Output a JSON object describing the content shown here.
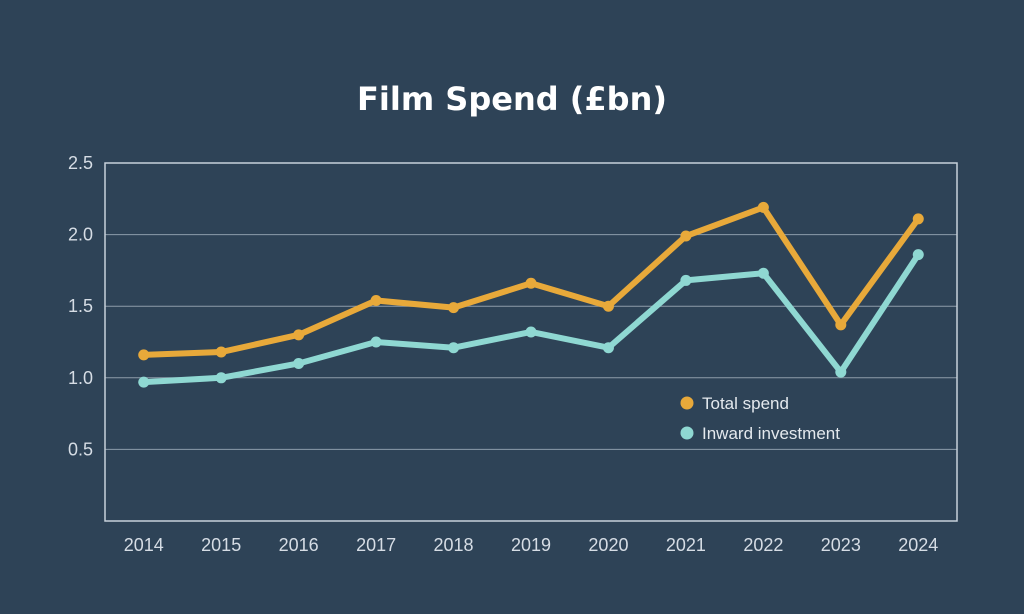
{
  "colors": {
    "background": "#2e4357",
    "axis": "#c7d1db",
    "grid": "#8d9caa",
    "text": "#d6dde5"
  },
  "chart_data": {
    "type": "line",
    "title": "Film Spend (£bn)",
    "xlabel": "",
    "ylabel": "",
    "x": [
      "2014",
      "2015",
      "2016",
      "2017",
      "2018",
      "2019",
      "2020",
      "2021",
      "2022",
      "2023",
      "2024"
    ],
    "ylim": [
      0,
      2.5
    ],
    "yticks": [
      "0.5",
      "1.0",
      "1.5",
      "2.0",
      "2.5"
    ],
    "grid": true,
    "legend_position": "lower-right",
    "series": [
      {
        "name": "Total spend",
        "color": "#e8a93a",
        "values": [
          1.16,
          1.18,
          1.3,
          1.54,
          1.49,
          1.66,
          1.5,
          1.99,
          2.19,
          1.37,
          2.11
        ]
      },
      {
        "name": "Inward investment",
        "color": "#8fd8d2",
        "values": [
          0.97,
          1.0,
          1.1,
          1.25,
          1.21,
          1.32,
          1.21,
          1.68,
          1.73,
          1.04,
          1.86
        ]
      }
    ]
  }
}
